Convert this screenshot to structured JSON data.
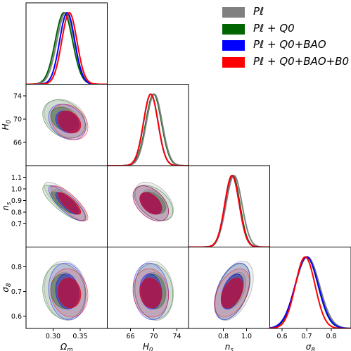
{
  "chart_data": {
    "type": "corner",
    "series": [
      {
        "name": "P_ℓ",
        "label": "Pℓ",
        "color": "#808080",
        "mean": {
          "omega_m": 0.323,
          "h0": 70.1,
          "ns": 0.892,
          "sigma8": 0.703
        },
        "sd": {
          "omega_m": 0.016,
          "h0": 1.35,
          "ns": 0.068,
          "sigma8": 0.049
        }
      },
      {
        "name": "P_ℓ + Q_0",
        "label": "Pℓ + Q0",
        "color": "#006400",
        "mean": {
          "omega_m": 0.32,
          "h0": 70.0,
          "ns": 0.88,
          "sigma8": 0.7
        },
        "sd": {
          "omega_m": 0.016,
          "h0": 1.35,
          "ns": 0.062,
          "sigma8": 0.046
        }
      },
      {
        "name": "P_ℓ + Q_0+BAO",
        "label": "Pℓ + Q0+BAO",
        "color": "#0000ff",
        "mean": {
          "omega_m": 0.326,
          "h0": 69.5,
          "ns": 0.875,
          "sigma8": 0.7
        },
        "sd": {
          "omega_m": 0.014,
          "h0": 1.25,
          "ns": 0.062,
          "sigma8": 0.047
        }
      },
      {
        "name": "P_ℓ + Q_0+BAO+B_0",
        "label": "Pℓ + Q0+BAO+B0",
        "color": "#ff0000",
        "mean": {
          "omega_m": 0.33,
          "h0": 69.5,
          "ns": 0.875,
          "sigma8": 0.694
        },
        "sd": {
          "omega_m": 0.014,
          "h0": 1.25,
          "ns": 0.062,
          "sigma8": 0.04
        }
      }
    ],
    "params": [
      {
        "key": "omega_m",
        "label": "Ωm",
        "range": [
          0.25,
          0.4
        ],
        "ticks": [
          0.3,
          0.35
        ],
        "tick_labels": [
          "0.30",
          "0.35"
        ]
      },
      {
        "key": "h0",
        "label": "H0",
        "range": [
          62,
          76
        ],
        "ticks": [
          66,
          70,
          74
        ],
        "tick_labels": [
          "66",
          "70",
          "74"
        ]
      },
      {
        "key": "ns",
        "label": "ns",
        "range": [
          0.5,
          1.2
        ],
        "ticks": [
          0.7,
          0.8,
          0.9,
          1.0,
          1.1
        ],
        "tick_labels": [
          "0.7",
          "0.8",
          "0.9",
          "1.0",
          "1.1"
        ],
        "x_ticks": [
          0.8,
          1.0
        ],
        "x_tick_labels": [
          "0.8",
          "1.0"
        ]
      },
      {
        "key": "sigma8",
        "label": "σ8",
        "range": [
          0.55,
          0.88
        ],
        "ticks": [
          0.6,
          0.7,
          0.8
        ],
        "tick_labels": [
          "0.6",
          "0.7",
          "0.8"
        ]
      }
    ],
    "correlations": {
      "h0_omega_m": -0.28,
      "ns_omega_m": -0.8,
      "ns_h0": -0.45,
      "sigma8_omega_m": -0.1,
      "sigma8_h0": -0.1,
      "sigma8_ns": 0.45
    },
    "contour_levels": [
      "68%",
      "95%"
    ],
    "legend": {
      "placement": "top-right"
    }
  }
}
